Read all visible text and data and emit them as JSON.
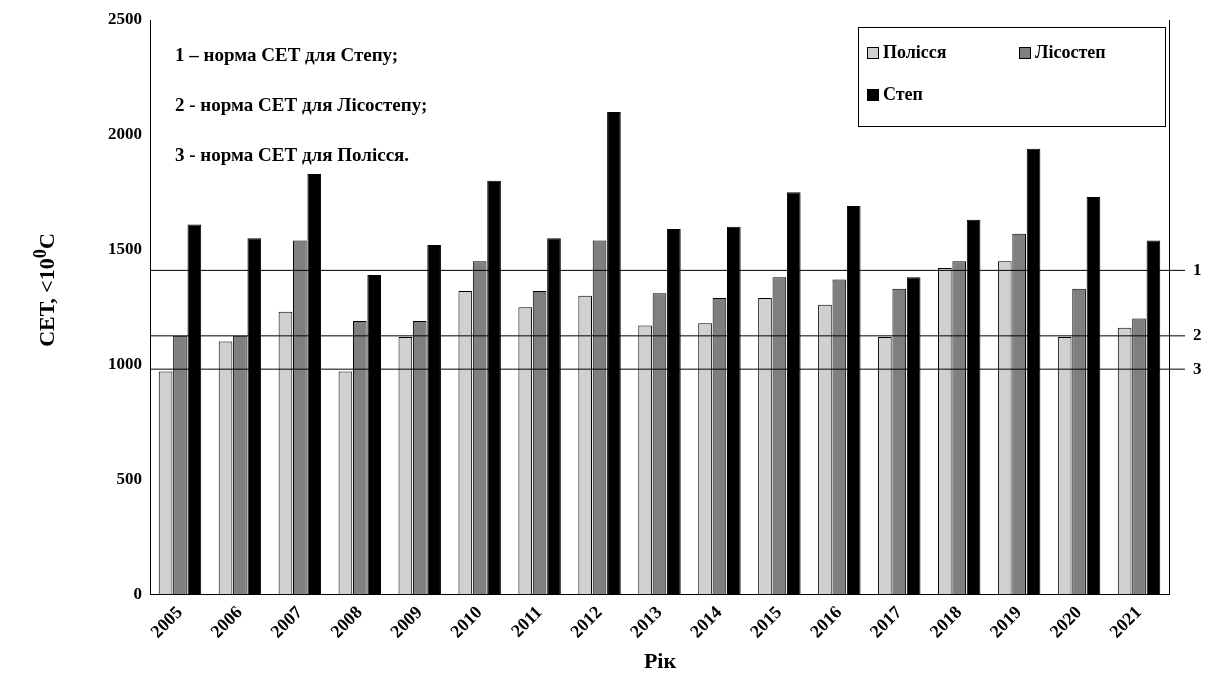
{
  "chart_data": {
    "type": "bar",
    "xlabel": "Рік",
    "ylabel": "СЕТ, <10$^{0}$С",
    "categories": [
      "2005",
      "2006",
      "2007",
      "2008",
      "2009",
      "2010",
      "2011",
      "2012",
      "2013",
      "2014",
      "2015",
      "2016",
      "2017",
      "2018",
      "2019",
      "2020",
      "2021"
    ],
    "series": [
      {
        "name": "Полісся",
        "color": "#d0d0d0",
        "values": [
          970,
          1100,
          1230,
          970,
          1120,
          1320,
          1250,
          1300,
          1170,
          1180,
          1290,
          1260,
          1120,
          1420,
          1450,
          1120,
          1160
        ]
      },
      {
        "name": "Лісостеп",
        "color": "#7f7f7f",
        "values": [
          1125,
          1125,
          1540,
          1190,
          1190,
          1450,
          1320,
          1540,
          1310,
          1290,
          1380,
          1370,
          1330,
          1450,
          1570,
          1330,
          1200
        ]
      },
      {
        "name": "Степ",
        "color": "#000000",
        "values": [
          1610,
          1550,
          1830,
          1390,
          1520,
          1800,
          1550,
          2100,
          1590,
          1600,
          1750,
          1690,
          1380,
          1630,
          1940,
          1730,
          1540
        ]
      }
    ],
    "ylim": [
      0,
      2500
    ],
    "yticks": [
      0,
      500,
      1000,
      1500,
      2000,
      2500
    ],
    "grid": false,
    "legend": "top right",
    "ref_lines": [
      {
        "axis": "y",
        "value": 1410,
        "color": "#000000"
      },
      {
        "axis": "y",
        "value": 1125,
        "color": "#000000"
      },
      {
        "axis": "y",
        "value": 980,
        "color": "#000000"
      }
    ],
    "annotations": [
      "1 – норма СЕТ для Степу;",
      "2 - норма СЕТ для Лісостепу;",
      "3 - норма СЕТ для Полісся.",
      "1",
      "2",
      "3"
    ]
  }
}
